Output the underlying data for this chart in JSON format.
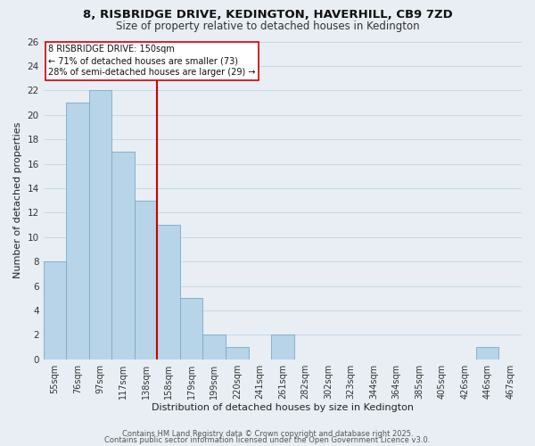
{
  "title": "8, RISBRIDGE DRIVE, KEDINGTON, HAVERHILL, CB9 7ZD",
  "subtitle": "Size of property relative to detached houses in Kedington",
  "xlabel": "Distribution of detached houses by size in Kedington",
  "ylabel": "Number of detached properties",
  "categories": [
    "55sqm",
    "76sqm",
    "97sqm",
    "117sqm",
    "138sqm",
    "158sqm",
    "179sqm",
    "199sqm",
    "220sqm",
    "241sqm",
    "261sqm",
    "282sqm",
    "302sqm",
    "323sqm",
    "344sqm",
    "364sqm",
    "385sqm",
    "405sqm",
    "426sqm",
    "446sqm",
    "467sqm"
  ],
  "values": [
    8,
    21,
    22,
    17,
    13,
    11,
    5,
    2,
    1,
    0,
    2,
    0,
    0,
    0,
    0,
    0,
    0,
    0,
    0,
    1,
    0
  ],
  "bar_color": "#b8d4e8",
  "bar_edge_color": "#7aaac8",
  "vline_x_index": 5,
  "vline_color": "#cc0000",
  "ylim_max": 26,
  "ytick_step": 2,
  "annotation_title": "8 RISBRIDGE DRIVE: 150sqm",
  "annotation_line1": "← 71% of detached houses are smaller (73)",
  "annotation_line2": "28% of semi-detached houses are larger (29) →",
  "annotation_box_facecolor": "#ffffff",
  "annotation_box_edgecolor": "#cc0000",
  "footer1": "Contains HM Land Registry data © Crown copyright and database right 2025.",
  "footer2": "Contains public sector information licensed under the Open Government Licence v3.0.",
  "grid_color": "#c8d8e8",
  "background_color": "#e8eef4",
  "title_fontsize": 9.5,
  "subtitle_fontsize": 8.5,
  "axis_label_fontsize": 8,
  "tick_fontsize": 7,
  "footer_fontsize": 6
}
